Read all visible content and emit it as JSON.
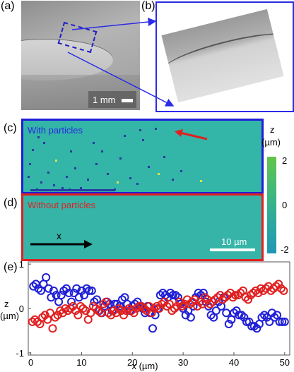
{
  "panels": {
    "a": "(a)",
    "b": "(b)",
    "c": "(c)",
    "d": "(d)",
    "e": "(e)"
  },
  "scale_a": "1 mm",
  "map_c_title": "With particles",
  "map_d_title": "Without particles",
  "x_arrow_label": "x",
  "scale_d": "10 µm",
  "colorbar": {
    "label_z": "z",
    "label_unit": "(µm)",
    "ticks": [
      "2",
      "0",
      "-2"
    ]
  },
  "colors": {
    "with_particles": "#1f1fd6",
    "without_particles": "#e02020",
    "map_base": "#33b5a8"
  },
  "chart_data": {
    "type": "scatter",
    "xlabel": "x (µm)",
    "ylabel": "z",
    "ylabel_unit": "(µm)",
    "xlim": [
      -0.5,
      51
    ],
    "ylim": [
      -1.05,
      1.05
    ],
    "xticks": [
      "0",
      "10",
      "20",
      "30",
      "40",
      "50"
    ],
    "yticks": [
      "1",
      "0",
      "-1"
    ],
    "series": [
      {
        "color": "#1f1fd6",
        "x": [
          0.5,
          1.0,
          1.5,
          2.0,
          2.5,
          3.0,
          3.5,
          4.0,
          4.5,
          5.0,
          5.5,
          6.0,
          6.5,
          7.0,
          7.5,
          8.0,
          8.5,
          9.0,
          9.5,
          10.0,
          10.5,
          11.0,
          11.5,
          12.0,
          12.5,
          13.0,
          13.5,
          14.0,
          14.5,
          15.0,
          15.5,
          16.0,
          16.5,
          17.0,
          17.5,
          18.0,
          18.5,
          19.0,
          19.5,
          20.0,
          20.5,
          21.0,
          21.5,
          22.0,
          22.5,
          23.0,
          23.5,
          24.0,
          24.5,
          25.0,
          25.5,
          26.0,
          26.5,
          27.0,
          27.5,
          28.0,
          28.5,
          29.0,
          29.5,
          30.0,
          30.5,
          31.0,
          31.5,
          32.0,
          32.5,
          33.0,
          33.5,
          34.0,
          34.5,
          35.0,
          35.5,
          36.0,
          36.5,
          37.0,
          37.5,
          38.0,
          38.5,
          39.0,
          39.5,
          40.0,
          40.5,
          41.0,
          41.5,
          42.0,
          42.5,
          43.0,
          43.5,
          44.0,
          44.5,
          45.0,
          45.5,
          46.0,
          46.5,
          47.0,
          47.5,
          48.0,
          48.5,
          49.0,
          49.5,
          50.0
        ],
        "y": [
          0.5,
          0.55,
          0.45,
          0.4,
          0.55,
          0.7,
          0.45,
          0.25,
          0.4,
          0.3,
          0.15,
          0.3,
          0.4,
          0.45,
          0.35,
          0.15,
          0.35,
          0.45,
          0.25,
          0.4,
          0.3,
          0.45,
          0.4,
          0.4,
          0.15,
          0.2,
          -0.05,
          -0.1,
          0.05,
          0.15,
          0.1,
          -0.05,
          0.1,
          0.1,
          0.05,
          0.2,
          0.25,
          0.1,
          -0.05,
          0.05,
          0.1,
          0.15,
          0.05,
          0.0,
          -0.1,
          0.05,
          -0.1,
          -0.45,
          -0.15,
          0.0,
          0.3,
          0.35,
          0.3,
          0.25,
          0.35,
          0.3,
          0.3,
          0.25,
          0.1,
          0.0,
          -0.15,
          -0.05,
          -0.2,
          0.05,
          0.25,
          0.35,
          0.3,
          0.35,
          0.15,
          0.05,
          -0.15,
          -0.2,
          -0.05,
          0.15,
          0.05,
          0.25,
          -0.1,
          -0.35,
          -0.25,
          -0.1,
          -0.05,
          -0.15,
          -0.15,
          -0.2,
          -0.3,
          -0.3,
          -0.4,
          -0.4,
          -0.45,
          -0.35,
          -0.2,
          -0.15,
          -0.2,
          -0.3,
          -0.1,
          -0.2,
          -0.15,
          -0.3,
          -0.3,
          -0.3
        ]
      },
      {
        "color": "#e02020",
        "x": [
          0.3,
          0.8,
          1.3,
          1.8,
          2.3,
          2.8,
          3.3,
          3.8,
          4.3,
          4.8,
          5.3,
          5.8,
          6.3,
          6.8,
          7.3,
          7.8,
          8.3,
          8.8,
          9.3,
          9.8,
          10.3,
          10.8,
          11.3,
          11.8,
          12.3,
          12.8,
          13.3,
          13.8,
          14.3,
          14.8,
          15.3,
          15.8,
          16.3,
          16.8,
          17.3,
          17.8,
          18.3,
          18.8,
          19.3,
          19.8,
          20.3,
          20.8,
          21.3,
          21.8,
          22.3,
          22.8,
          23.3,
          23.8,
          24.3,
          24.8,
          25.3,
          25.8,
          26.3,
          26.8,
          27.3,
          27.8,
          28.3,
          28.8,
          29.3,
          29.8,
          30.3,
          30.8,
          31.3,
          31.8,
          32.3,
          32.8,
          33.3,
          33.8,
          34.3,
          34.8,
          35.3,
          35.8,
          36.3,
          36.8,
          37.3,
          37.8,
          38.3,
          38.8,
          39.3,
          39.8,
          40.3,
          40.8,
          41.3,
          41.8,
          42.3,
          42.8,
          43.3,
          43.8,
          44.3,
          44.8,
          45.3,
          45.8,
          46.3,
          46.8,
          47.3,
          47.8,
          48.3,
          48.8,
          49.3,
          49.8
        ],
        "y": [
          -0.3,
          -0.25,
          -0.3,
          -0.35,
          -0.2,
          -0.15,
          -0.25,
          -0.1,
          -0.45,
          -0.2,
          -0.15,
          -0.05,
          -0.1,
          0.0,
          -0.05,
          0.0,
          0.05,
          -0.05,
          -0.15,
          0.05,
          0.0,
          -0.05,
          -0.25,
          -0.1,
          0.05,
          0.0,
          -0.05,
          -0.1,
          0.1,
          0.15,
          -0.1,
          -0.15,
          -0.05,
          -0.1,
          0.0,
          -0.05,
          -0.15,
          -0.05,
          0.0,
          -0.05,
          -0.1,
          0.0,
          0.05,
          0.05,
          0.0,
          -0.05,
          0.05,
          -0.1,
          0.0,
          0.05,
          0.0,
          0.1,
          0.15,
          0.05,
          0.1,
          -0.05,
          0.0,
          0.05,
          0.15,
          0.05,
          0.1,
          0.2,
          0.1,
          0.15,
          0.2,
          0.05,
          0.15,
          0.1,
          0.25,
          0.2,
          0.1,
          0.15,
          0.2,
          0.25,
          0.3,
          0.2,
          0.25,
          0.3,
          0.35,
          0.25,
          0.3,
          0.3,
          0.35,
          0.4,
          0.25,
          0.2,
          0.3,
          0.35,
          0.4,
          0.35,
          0.45,
          0.4,
          0.45,
          0.5,
          0.4,
          0.45,
          0.5,
          0.55,
          0.45,
          0.4
        ]
      }
    ]
  }
}
